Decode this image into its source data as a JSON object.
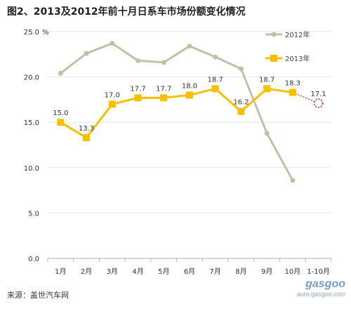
{
  "title": "图2、2013及2012年前十月日系车市场份额变化情况",
  "source": "来源：盖世汽车网",
  "watermark": {
    "logo": "gasgoo",
    "url": "auto.gasgoo.com"
  },
  "colors": {
    "series_2012": "#c3c0a7",
    "series_2013": "#f5c000",
    "projection": "#c0504d",
    "grid": "#e6e6e6",
    "axis": "#b0b0b0"
  },
  "chart_data": {
    "type": "line",
    "title": "图2、2013及2012年前十月日系车市场份额变化情况",
    "unit": "%",
    "categories": [
      "1月",
      "2月",
      "3月",
      "4月",
      "5月",
      "6月",
      "7月",
      "8月",
      "9月",
      "10月",
      "1-10月"
    ],
    "ylim": [
      0,
      25
    ],
    "yticks": [
      "0.0",
      "5.0",
      "10.0",
      "15.0",
      "20.0",
      "25.0"
    ],
    "ytick_values": [
      0,
      5,
      10,
      15,
      20,
      25
    ],
    "grid": true,
    "legend_position": "top-right",
    "series": [
      {
        "name": "2012年",
        "values": [
          20.4,
          22.6,
          23.7,
          21.8,
          21.6,
          23.4,
          22.2,
          20.9,
          13.8,
          8.6,
          null
        ],
        "labels": null
      },
      {
        "name": "2013年",
        "values": [
          15.0,
          13.3,
          17.0,
          17.7,
          17.7,
          18.0,
          18.7,
          16.2,
          18.7,
          18.3,
          17.1
        ],
        "labels": [
          "15.0",
          "13.3",
          "17.0",
          "17.7",
          "17.7",
          "18.0",
          "18.7",
          "16.2",
          "18.7",
          "18.3",
          "17.1"
        ]
      }
    ]
  }
}
